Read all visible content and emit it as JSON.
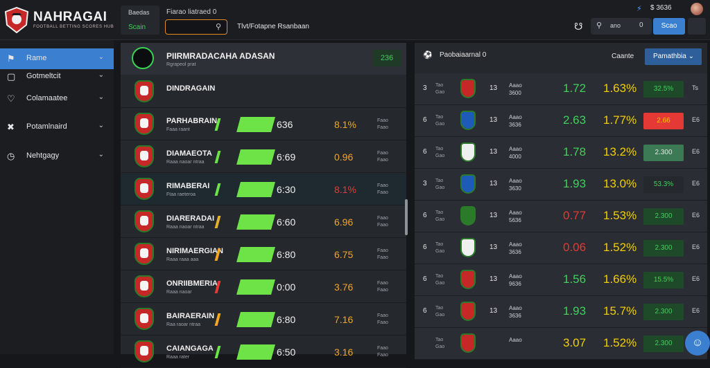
{
  "brand": {
    "name": "NAHRAGAI",
    "tagline": "FOOTBALL BETTING SCORES HUB",
    "logo_icon": "shield-logo-icon"
  },
  "header": {
    "account_title": "Baedas",
    "account_value": "Scain",
    "search_label": "Fiarao liatraed",
    "search_counter": "0",
    "search_icon": "search-icon",
    "link": "Tlvt/Fotapne Rsanbaan",
    "balance_icon": "shield-check-icon",
    "balance": "$ 3636",
    "bell_icon": "bell-icon",
    "quick_search_value": "ano",
    "quick_search_count": "0",
    "primary_button": "Scao"
  },
  "sidebar": {
    "items": [
      {
        "label": "Rame",
        "icon": "home-icon",
        "active": true
      },
      {
        "label": "Gotmeltcit",
        "icon": "tablet-icon",
        "active": false
      },
      {
        "label": "Colamaatee",
        "icon": "heart-icon",
        "active": false
      },
      {
        "label": "Potamlnaird",
        "icon": "crossed-icon",
        "active": false
      },
      {
        "label": "Nehtgagy",
        "icon": "clock-icon",
        "active": false
      }
    ]
  },
  "left_panel": {
    "title": "PIIRMRADACAHA ADASAN",
    "subtitle": "Rgrapeol prat",
    "count": "236",
    "rows": [
      {
        "name": "DINDRAGAIN",
        "sub": "",
        "v1": "",
        "v2": "",
        "v2_color": "#f0f0f0",
        "tick": "",
        "mini1": "",
        "mini2": "",
        "hl": false
      },
      {
        "name": "PARHABRAIN",
        "sub": "Faaa raant",
        "v1": "636",
        "v2": "8.1%",
        "v2_color": "#f5a623",
        "tick": "#6ee347",
        "mini1": "Faao",
        "mini2": "Faao",
        "hl": false
      },
      {
        "name": "DIAMAEOTA",
        "sub": "Raaa naoar ntraa",
        "v1": "6:69",
        "v2": "0.96",
        "v2_color": "#f5a623",
        "tick": "#6ee347",
        "mini1": "Faao",
        "mini2": "Faao",
        "hl": false
      },
      {
        "name": "RIMABERAI",
        "sub": "Ftaa raeteroa",
        "v1": "6:30",
        "v2": "8.1%",
        "v2_color": "#e53935",
        "tick": "#6ee347",
        "mini1": "Faao",
        "mini2": "Faao",
        "hl": true
      },
      {
        "name": "DIARERADAI",
        "sub": "Raaa naoar ntraa",
        "v1": "6:60",
        "v2": "6.96",
        "v2_color": "#f5a623",
        "tick": "#e3b22a",
        "mini1": "Faao",
        "mini2": "Faao",
        "hl": false
      },
      {
        "name": "NIRIMAERGIAN",
        "sub": "Raaa raaa aaa",
        "v1": "6:80",
        "v2": "6.75",
        "v2_color": "#f5a623",
        "tick": "#f5a623",
        "mini1": "Faao",
        "mini2": "Faao",
        "hl": false
      },
      {
        "name": "ONRIIBMERIA",
        "sub": "Raaa naoar",
        "v1": "0:00",
        "v2": "3.76",
        "v2_color": "#f5a623",
        "tick": "#e53935",
        "mini1": "Faao",
        "mini2": "Faao",
        "hl": false
      },
      {
        "name": "BAIRAERAIN",
        "sub": "Raa raoar ntraa",
        "v1": "6:80",
        "v2": "7.16",
        "v2_color": "#f5a623",
        "tick": "#f5a623",
        "mini1": "Faao",
        "mini2": "Faao",
        "hl": false
      },
      {
        "name": "CAIANGAGA",
        "sub": "Raaa rater",
        "v1": "6:50",
        "v2": "3.16",
        "v2_color": "#f5a623",
        "tick": "#6ee347",
        "mini1": "Faao",
        "mini2": "Faao",
        "hl": false
      }
    ]
  },
  "right_panel": {
    "title": "Paobaiaarnal",
    "title_suffix": "0",
    "title_icon": "football-icon",
    "filter_label": "Caante",
    "select_value": "Pamathbia",
    "rows": [
      {
        "idx": "3",
        "l1": "Tao",
        "l2": "Gao",
        "mid": "13",
        "d1": "Aaao",
        "d2": "3600",
        "o1": "1.72",
        "o1c": "#3fd25a",
        "o2": "1.63%",
        "btn": "32.5%",
        "btn_bg": "#1f4a2a",
        "btn_fg": "#3fd25a",
        "end": "Ts"
      },
      {
        "idx": "6",
        "l1": "Tao",
        "l2": "Gao",
        "mid": "13",
        "d1": "Aaao",
        "d2": "3636",
        "o1": "2.63",
        "o1c": "#3fd25a",
        "o2": "1.77%",
        "btn": "2.66",
        "btn_bg": "#e53935",
        "btn_fg": "#f2d000",
        "end": "E6"
      },
      {
        "idx": "6",
        "l1": "Tao",
        "l2": "Gao",
        "mid": "13",
        "d1": "Aaao",
        "d2": "4000",
        "o1": "1.78",
        "o1c": "#3fd25a",
        "o2": "13.2%",
        "btn": "2.300",
        "btn_bg": "#3c7a55",
        "btn_fg": "#e6e6e6",
        "end": "E6"
      },
      {
        "idx": "3",
        "l1": "Tao",
        "l2": "Gao",
        "mid": "13",
        "d1": "Aaao",
        "d2": "3630",
        "o1": "1.93",
        "o1c": "#3fd25a",
        "o2": "13.0%",
        "btn": "53.3%",
        "btn_bg": "#25282d",
        "btn_fg": "#3fd25a",
        "end": "E6"
      },
      {
        "idx": "6",
        "l1": "Tao",
        "l2": "Gao",
        "mid": "13",
        "d1": "Aaao",
        "d2": "5636",
        "o1": "0.77",
        "o1c": "#e53935",
        "o2": "1.53%",
        "btn": "2.300",
        "btn_bg": "#1f4a2a",
        "btn_fg": "#3fd25a",
        "end": "E6"
      },
      {
        "idx": "6",
        "l1": "Tao",
        "l2": "Gao",
        "mid": "13",
        "d1": "Aaao",
        "d2": "3636",
        "o1": "0.06",
        "o1c": "#e53935",
        "o2": "1.52%",
        "btn": "2.300",
        "btn_bg": "#1f4a2a",
        "btn_fg": "#3fd25a",
        "end": "E6"
      },
      {
        "idx": "6",
        "l1": "Tao",
        "l2": "Gao",
        "mid": "13",
        "d1": "Aaao",
        "d2": "9636",
        "o1": "1.56",
        "o1c": "#3fd25a",
        "o2": "1.66%",
        "btn": "15.5%",
        "btn_bg": "#1f4a2a",
        "btn_fg": "#3fd25a",
        "end": "E6"
      },
      {
        "idx": "6",
        "l1": "Tao",
        "l2": "Gao",
        "mid": "13",
        "d1": "Aaao",
        "d2": "3636",
        "o1": "1.93",
        "o1c": "#3fd25a",
        "o2": "15.7%",
        "btn": "2.300",
        "btn_bg": "#1f4a2a",
        "btn_fg": "#3fd25a",
        "end": "E6"
      },
      {
        "idx": "",
        "l1": "Tao",
        "l2": "Gao",
        "mid": "",
        "d1": "Aaao",
        "d2": "",
        "o1": "3.07",
        "o1c": "#f2d000",
        "o2": "1.52%",
        "btn": "2.300",
        "btn_bg": "#1f4a2a",
        "btn_fg": "#3fd25a",
        "end": "E6"
      }
    ]
  },
  "chat_icon": "chat-bubble-icon"
}
